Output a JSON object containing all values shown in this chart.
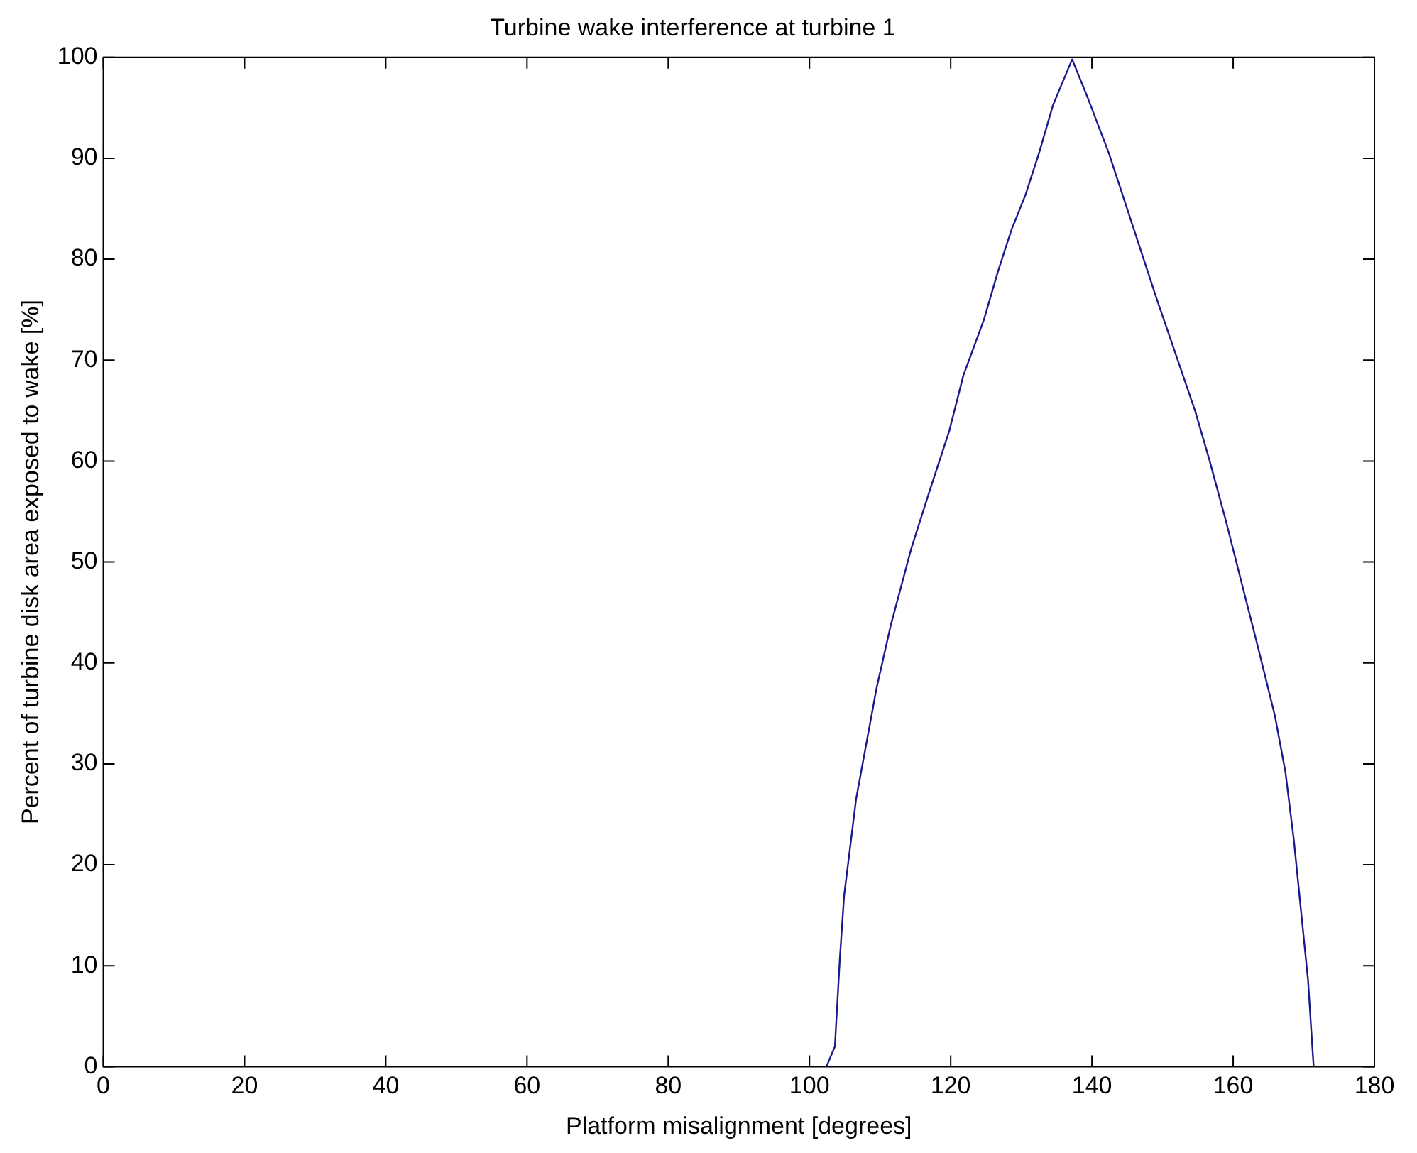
{
  "chart_data": {
    "type": "line",
    "title": "Turbine wake interference at turbine 1",
    "xlabel": "Platform misalignment [degrees]",
    "ylabel": "Percent of turbine disk area exposed to wake [%]",
    "x": [
      102.4,
      103.6,
      104.3,
      104.9,
      106.6,
      109.5,
      111.5,
      114.4,
      116.9,
      119.8,
      121.8,
      124.7,
      126.7,
      128.6,
      130.6,
      132.5,
      134.5,
      137.2,
      139.4,
      142.4,
      146.3,
      149.2,
      152.2,
      154.6,
      156.6,
      159,
      161.5,
      163.5,
      165.9,
      167.4,
      168.6,
      169.6,
      170.6,
      171.3,
      171.4
    ],
    "series": [
      {
        "color": "#1a1a8c",
        "values": [
          0,
          2,
          10.7,
          16.9,
          26.5,
          37.5,
          43.7,
          51.3,
          56.8,
          63,
          68.5,
          74,
          78.8,
          82.9,
          86.4,
          90.5,
          95.3,
          99.8,
          96,
          90.5,
          82.2,
          76,
          69.9,
          65,
          60.2,
          54,
          47.1,
          41.6,
          34.8,
          29.2,
          22.4,
          15.5,
          8.6,
          1,
          0
        ]
      }
    ],
    "xlim": [
      0,
      180
    ],
    "xticks": [
      0,
      20,
      40,
      60,
      80,
      100,
      120,
      140,
      160,
      180
    ],
    "ylim": [
      0,
      100
    ],
    "yticks": [
      0,
      10,
      20,
      30,
      40,
      50,
      60,
      70,
      80,
      90,
      100
    ],
    "grid": false,
    "legend": false,
    "marker": "none",
    "line_style": "solid"
  }
}
